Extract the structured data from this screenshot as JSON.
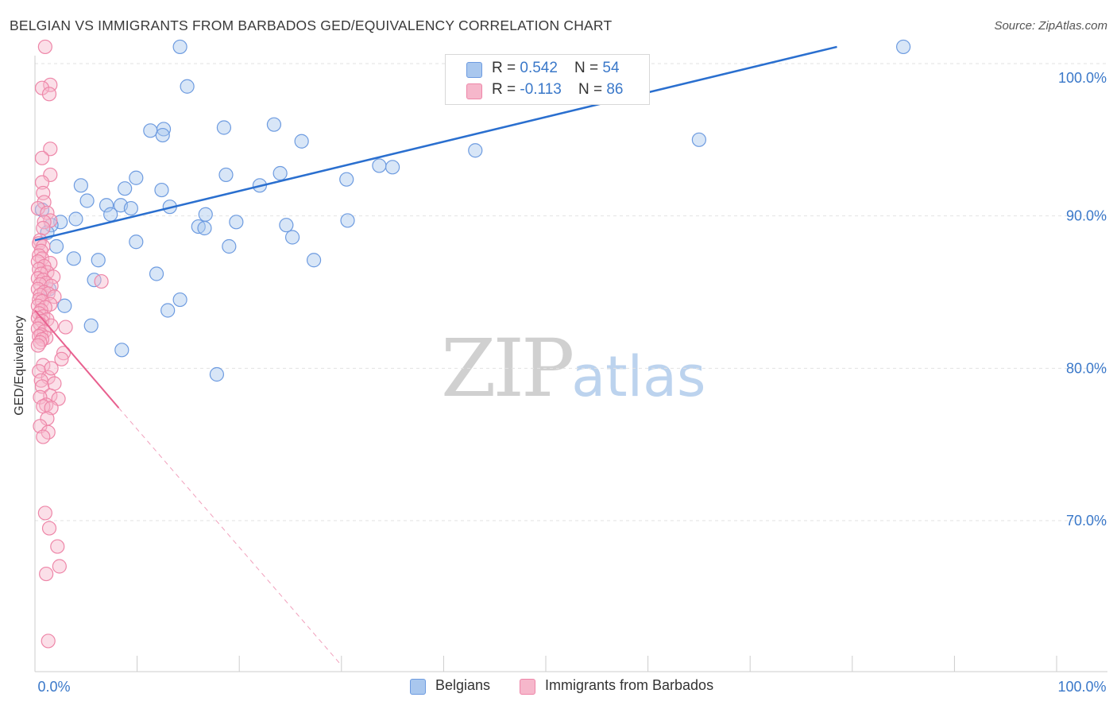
{
  "title": "BELGIAN VS IMMIGRANTS FROM BARBADOS GED/EQUIVALENCY CORRELATION CHART",
  "source": "Source: ZipAtlas.com",
  "watermark": {
    "zip": "ZIP",
    "atlas": "atlas"
  },
  "colors": {
    "blue_fill": "#a9c7ee",
    "blue_stroke": "#6d9be0",
    "blue_line": "#2a6fcf",
    "pink_fill": "#f6b7cb",
    "pink_stroke": "#ee86a8",
    "pink_line": "#e8608f",
    "axis_text": "#3a78c9",
    "grid": "#e2e2e2"
  },
  "legend_top": {
    "rows": [
      {
        "r_label": "R = ",
        "r_value": "0.542",
        "n_label": "N = ",
        "n_value": "54"
      },
      {
        "r_label": "R = ",
        "r_value": "-0.113",
        "n_label": "N = ",
        "n_value": "86"
      }
    ]
  },
  "legend_bottom": [
    "Belgians",
    "Immigrants from Barbados"
  ],
  "chart_data": {
    "type": "scatter",
    "title": "BELGIAN VS IMMIGRANTS FROM BARBADOS GED/EQUIVALENCY CORRELATION CHART",
    "xlabel": "",
    "ylabel": "GED/Equivalency",
    "xlim": [
      0,
      100
    ],
    "ylim": [
      60.5,
      102
    ],
    "x_tick_labels": [
      {
        "value": 0,
        "label": "0.0%"
      },
      {
        "value": 100,
        "label": "100.0%"
      }
    ],
    "y_ticks": [
      {
        "value": 70,
        "label": "70.0%"
      },
      {
        "value": 80,
        "label": "80.0%"
      },
      {
        "value": 90,
        "label": "90.0%"
      },
      {
        "value": 100,
        "label": "100.0%"
      }
    ],
    "series": [
      {
        "name": "Belgians",
        "color": "blue",
        "r": 0.542,
        "n": 54,
        "trend": {
          "x": [
            0,
            78.5
          ],
          "y": [
            88.4,
            101.1
          ]
        },
        "points": [
          [
            14.2,
            101.1
          ],
          [
            85.0,
            101.1
          ],
          [
            14.9,
            98.5
          ],
          [
            23.4,
            96.0
          ],
          [
            18.5,
            95.8
          ],
          [
            11.3,
            95.6
          ],
          [
            12.6,
            95.7
          ],
          [
            12.5,
            95.3
          ],
          [
            26.1,
            94.9
          ],
          [
            43.1,
            94.3
          ],
          [
            65.0,
            95.0
          ],
          [
            33.7,
            93.3
          ],
          [
            30.5,
            92.4
          ],
          [
            35.0,
            93.2
          ],
          [
            9.9,
            92.5
          ],
          [
            18.7,
            92.7
          ],
          [
            8.8,
            91.8
          ],
          [
            4.5,
            92.0
          ],
          [
            22.0,
            92.0
          ],
          [
            24.0,
            92.8
          ],
          [
            5.1,
            91.0
          ],
          [
            12.4,
            91.7
          ],
          [
            8.4,
            90.7
          ],
          [
            7.0,
            90.7
          ],
          [
            9.4,
            90.5
          ],
          [
            7.4,
            90.1
          ],
          [
            0.7,
            90.4
          ],
          [
            13.2,
            90.6
          ],
          [
            16.7,
            90.1
          ],
          [
            16.0,
            89.3
          ],
          [
            16.6,
            89.2
          ],
          [
            4.0,
            89.8
          ],
          [
            2.5,
            89.6
          ],
          [
            1.6,
            89.4
          ],
          [
            19.7,
            89.6
          ],
          [
            24.6,
            89.4
          ],
          [
            30.6,
            89.7
          ],
          [
            1.2,
            88.9
          ],
          [
            2.1,
            88.0
          ],
          [
            9.9,
            88.3
          ],
          [
            3.8,
            87.2
          ],
          [
            6.2,
            87.1
          ],
          [
            27.3,
            87.1
          ],
          [
            11.9,
            86.2
          ],
          [
            5.8,
            85.8
          ],
          [
            1.4,
            85.2
          ],
          [
            14.2,
            84.5
          ],
          [
            2.9,
            84.1
          ],
          [
            13.0,
            83.8
          ],
          [
            5.5,
            82.8
          ],
          [
            8.5,
            81.2
          ],
          [
            17.8,
            79.6
          ],
          [
            25.2,
            88.6
          ],
          [
            19.0,
            88.0
          ]
        ]
      },
      {
        "name": "Immigrants from Barbados",
        "color": "pink",
        "r": -0.113,
        "n": 86,
        "trend": {
          "x": [
            0,
            8.2
          ],
          "y": [
            83.8,
            77.4
          ]
        },
        "trend_dashed": {
          "x": [
            8.2,
            30.0
          ],
          "y": [
            77.4,
            60.5
          ]
        },
        "points": [
          [
            1.0,
            101.1
          ],
          [
            1.5,
            98.6
          ],
          [
            0.7,
            98.4
          ],
          [
            1.4,
            98.0
          ],
          [
            1.5,
            94.4
          ],
          [
            0.7,
            93.8
          ],
          [
            1.5,
            92.7
          ],
          [
            0.7,
            92.2
          ],
          [
            0.8,
            91.5
          ],
          [
            0.9,
            90.9
          ],
          [
            0.3,
            90.5
          ],
          [
            1.2,
            90.2
          ],
          [
            1.5,
            89.7
          ],
          [
            0.9,
            89.6
          ],
          [
            0.8,
            89.2
          ],
          [
            0.5,
            88.4
          ],
          [
            0.4,
            88.2
          ],
          [
            0.8,
            88.0
          ],
          [
            0.6,
            87.7
          ],
          [
            0.4,
            87.4
          ],
          [
            0.7,
            87.2
          ],
          [
            0.3,
            87.0
          ],
          [
            1.5,
            86.9
          ],
          [
            0.9,
            86.7
          ],
          [
            0.4,
            86.5
          ],
          [
            1.2,
            86.3
          ],
          [
            0.6,
            86.2
          ],
          [
            1.8,
            86.0
          ],
          [
            0.3,
            85.9
          ],
          [
            0.8,
            85.8
          ],
          [
            1.1,
            85.6
          ],
          [
            0.5,
            85.5
          ],
          [
            1.6,
            85.4
          ],
          [
            0.3,
            85.2
          ],
          [
            0.9,
            85.0
          ],
          [
            1.3,
            84.9
          ],
          [
            0.5,
            84.8
          ],
          [
            1.9,
            84.7
          ],
          [
            0.4,
            84.5
          ],
          [
            0.7,
            84.4
          ],
          [
            1.5,
            84.2
          ],
          [
            0.3,
            84.1
          ],
          [
            1.0,
            84.0
          ],
          [
            0.6,
            83.8
          ],
          [
            0.4,
            83.6
          ],
          [
            0.8,
            83.4
          ],
          [
            0.3,
            83.3
          ],
          [
            1.2,
            83.2
          ],
          [
            0.7,
            83.1
          ],
          [
            0.5,
            82.9
          ],
          [
            1.6,
            82.8
          ],
          [
            0.3,
            82.6
          ],
          [
            0.9,
            82.4
          ],
          [
            0.6,
            82.2
          ],
          [
            0.4,
            82.1
          ],
          [
            1.1,
            82.0
          ],
          [
            0.7,
            81.9
          ],
          [
            0.5,
            81.7
          ],
          [
            0.3,
            81.5
          ],
          [
            2.8,
            81.0
          ],
          [
            0.8,
            80.2
          ],
          [
            0.4,
            79.8
          ],
          [
            1.3,
            79.4
          ],
          [
            0.6,
            79.2
          ],
          [
            1.9,
            79.0
          ],
          [
            0.7,
            78.8
          ],
          [
            1.5,
            78.2
          ],
          [
            0.5,
            78.1
          ],
          [
            2.3,
            78.0
          ],
          [
            1.1,
            77.6
          ],
          [
            0.8,
            77.5
          ],
          [
            1.6,
            77.4
          ],
          [
            1.2,
            76.7
          ],
          [
            0.5,
            76.2
          ],
          [
            1.3,
            75.8
          ],
          [
            0.8,
            75.5
          ],
          [
            1.0,
            70.5
          ],
          [
            1.4,
            69.5
          ],
          [
            2.2,
            68.3
          ],
          [
            2.4,
            67.0
          ],
          [
            1.1,
            66.5
          ],
          [
            1.3,
            62.1
          ],
          [
            6.5,
            85.7
          ],
          [
            3.0,
            82.7
          ],
          [
            1.6,
            80.0
          ],
          [
            2.6,
            80.6
          ]
        ]
      }
    ]
  }
}
